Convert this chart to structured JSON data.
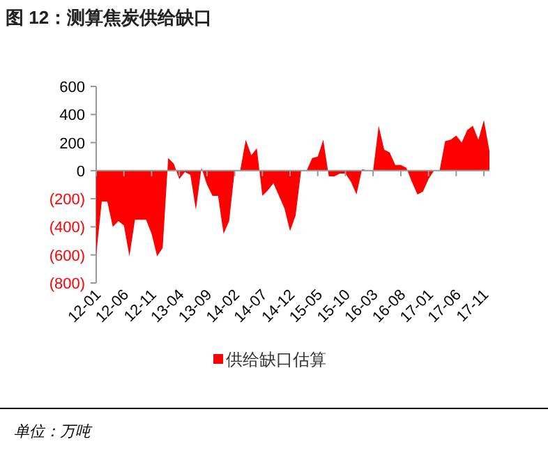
{
  "chart_data": {
    "type": "area",
    "title": "图 12：测算焦炭供给缺口",
    "categories": [
      "12-01",
      null,
      null,
      null,
      null,
      "12-06",
      null,
      null,
      null,
      null,
      "12-11",
      null,
      null,
      null,
      null,
      "13-04",
      null,
      null,
      null,
      null,
      "13-09",
      null,
      null,
      null,
      null,
      "14-02",
      null,
      null,
      null,
      null,
      "14-07",
      null,
      null,
      null,
      null,
      "14-12",
      null,
      null,
      null,
      null,
      "15-05",
      null,
      null,
      null,
      null,
      "15-10",
      null,
      null,
      null,
      null,
      "16-03",
      null,
      null,
      null,
      null,
      "16-08",
      null,
      null,
      null,
      null,
      "17-01",
      null,
      null,
      null,
      null,
      "17-06",
      null,
      null,
      null,
      null,
      "17-11",
      null
    ],
    "series": [
      {
        "name": "供给缺口估算",
        "color": "#ff0000",
        "values": [
          -600,
          -220,
          -220,
          -400,
          -360,
          -390,
          -610,
          -350,
          -350,
          -350,
          -450,
          -610,
          -550,
          90,
          50,
          -60,
          -10,
          -30,
          -280,
          20,
          -100,
          -180,
          -180,
          -450,
          -360,
          0,
          0,
          220,
          110,
          160,
          -180,
          -140,
          -90,
          -180,
          -270,
          -430,
          -320,
          0,
          0,
          90,
          100,
          220,
          -40,
          -40,
          -20,
          -20,
          -80,
          -170,
          10,
          0,
          0,
          320,
          150,
          130,
          40,
          40,
          20,
          -80,
          -170,
          -150,
          -60,
          0,
          0,
          210,
          220,
          250,
          200,
          290,
          320,
          220,
          360,
          140
        ]
      }
    ],
    "ylim": [
      -800,
      600
    ],
    "yticks": [
      {
        "value": -800,
        "label": "(800)"
      },
      {
        "value": -600,
        "label": "(600)"
      },
      {
        "value": -400,
        "label": "(400)"
      },
      {
        "value": -200,
        "label": "(200)"
      },
      0,
      200,
      400,
      600
    ],
    "legend": "bottom",
    "annotations": [
      "单位：万吨"
    ]
  }
}
